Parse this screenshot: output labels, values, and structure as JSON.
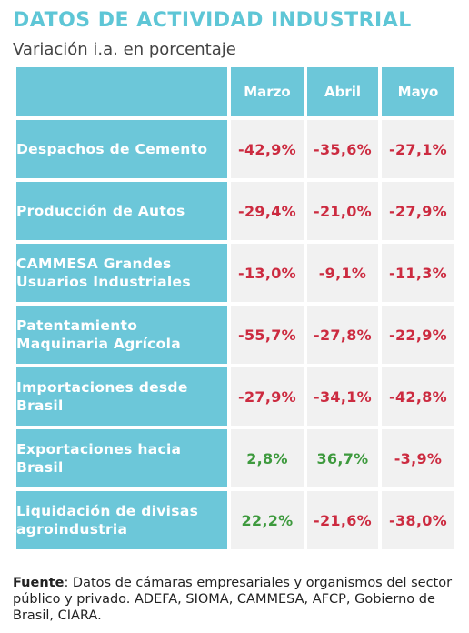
{
  "title": "DATOS DE ACTIVIDAD INDUSTRIAL",
  "subtitle": "Variación i.a. en porcentaje",
  "columns": [
    "Marzo",
    "Abril",
    "Mayo"
  ],
  "rows": [
    {
      "label": "Despachos de Cemento",
      "values": [
        "-42,9%",
        "-35,6%",
        "-27,1%"
      ]
    },
    {
      "label": "Producción de Autos",
      "values": [
        "-29,4%",
        "-21,0%",
        "-27,9%"
      ]
    },
    {
      "label": "CAMMESA Grandes Usuarios Industriales",
      "values": [
        "-13,0%",
        "-9,1%",
        "-11,3%"
      ]
    },
    {
      "label": "Patentamiento Maquinaria Agrícola",
      "values": [
        "-55,7%",
        "-27,8%",
        "-22,9%"
      ]
    },
    {
      "label": "Importaciones desde Brasil",
      "values": [
        "-27,9%",
        "-34,1%",
        "-42,8%"
      ]
    },
    {
      "label": "Exportaciones hacia Brasil",
      "values": [
        "2,8%",
        "36,7%",
        "-3,9%"
      ]
    },
    {
      "label": "Liquidación de divisas agroindustria",
      "values": [
        "22,2%",
        "-21,6%",
        "-38,0%"
      ]
    }
  ],
  "colors": {
    "accent": "#6cc7d9",
    "title": "#5ec6d6",
    "negative": "#cc2b40",
    "positive": "#3e9a3e",
    "cell_bg": "#f1f1f1"
  },
  "source": {
    "label": "Fuente",
    "text": ": Datos de cámaras empresariales y organismos del sector público y privado. ADEFA, SIOMA, CAMMESA, AFCP, Gobierno de Brasil, CIARA."
  }
}
